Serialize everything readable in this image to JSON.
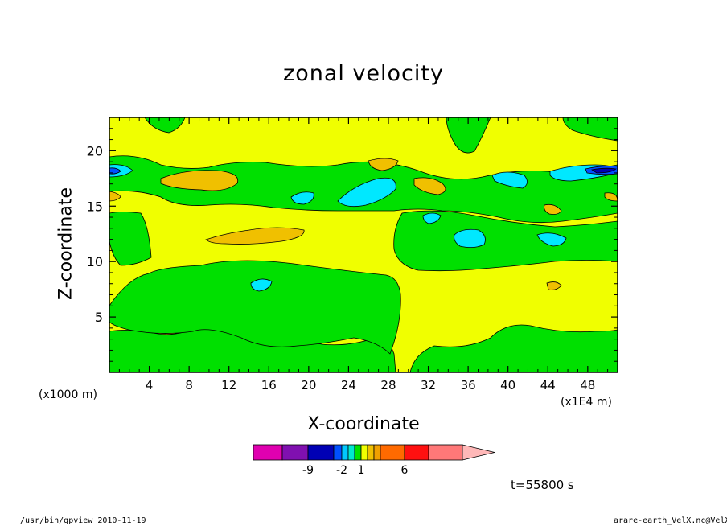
{
  "chart_data": {
    "type": "heatmap",
    "title": "zonal velocity",
    "xlabel": "X-coordinate",
    "ylabel": "Z-coordinate",
    "x_unit": "(x1E4 m)",
    "y_unit": "(x1000 m)",
    "xlim": [
      0,
      51
    ],
    "ylim": [
      0,
      23
    ],
    "x_ticks": [
      4,
      8,
      12,
      16,
      20,
      24,
      28,
      32,
      36,
      40,
      44,
      48
    ],
    "y_ticks": [
      5,
      10,
      15,
      20
    ],
    "colorbar": {
      "colors": [
        "#e000b0",
        "#8010b0",
        "#0000b4",
        "#0050ff",
        "#00c8ff",
        "#00e8d0",
        "#00e000",
        "#f0ff00",
        "#f0c000",
        "#f0a000",
        "#ff6a00",
        "#ff1010",
        "#ff7878",
        "#ffb8b8"
      ],
      "labels": [
        "-9",
        "-2",
        "1",
        "6"
      ]
    },
    "color_regions": {
      "background": "#f0ff00",
      "green": "#00e000",
      "orange": "#f0c000",
      "cyan": "#00e8ff",
      "blue": "#0050ff",
      "navy": "#0000b4"
    }
  },
  "time_label": "t=55800 s",
  "footer": {
    "left": "/usr/bin/gpview   2010-11-19",
    "right": "arare-earth_VelX.nc@VelX"
  }
}
